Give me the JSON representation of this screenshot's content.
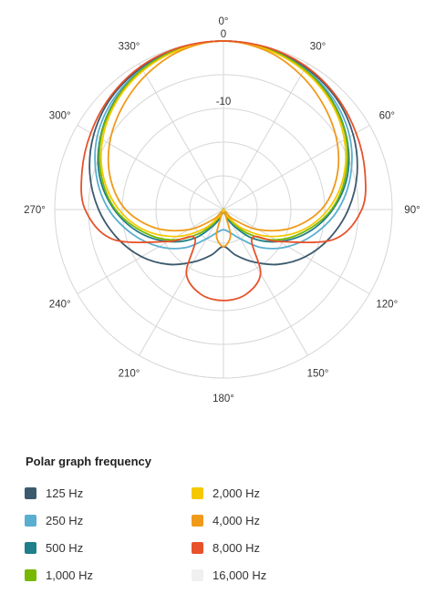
{
  "chart_data": {
    "type": "polar-line",
    "title": "",
    "radial_unit": "dB",
    "radial_range": [
      -25,
      0
    ],
    "radial_tick_labels": [
      "0",
      "-10"
    ],
    "angle_tick_labels": [
      "0°",
      "30°",
      "60°",
      "90°",
      "120°",
      "150°",
      "180°",
      "210°",
      "240°",
      "270°",
      "300°",
      "330°"
    ],
    "angles_deg": [
      0,
      15,
      30,
      45,
      60,
      75,
      90,
      105,
      120,
      135,
      150,
      165,
      180
    ],
    "symmetric": true,
    "series": [
      {
        "name": "125 Hz",
        "color": "#3d5a6c",
        "values": [
          0,
          -0.2,
          -0.7,
          -1.5,
          -2.8,
          -4.5,
          -6.5,
          -8.7,
          -11.0,
          -13.5,
          -16.0,
          -18.0,
          -19.5
        ]
      },
      {
        "name": "250 Hz",
        "color": "#5aaed0",
        "values": [
          0,
          -0.3,
          -0.9,
          -1.9,
          -3.4,
          -5.5,
          -8.0,
          -11.0,
          -14.0,
          -17.0,
          -20.0,
          -21.5,
          -22.0
        ]
      },
      {
        "name": "500 Hz",
        "color": "#1f7f8a",
        "values": [
          0,
          -0.3,
          -1.0,
          -2.2,
          -3.9,
          -6.0,
          -8.8,
          -12.0,
          -15.5,
          -19.0,
          -22.5,
          -24.5,
          -25.0
        ]
      },
      {
        "name": "1,000 Hz",
        "color": "#77b800",
        "values": [
          0,
          -0.3,
          -1.0,
          -2.3,
          -4.0,
          -6.3,
          -9.0,
          -12.5,
          -16.0,
          -20.0,
          -23.5,
          -25.0,
          -25.0
        ]
      },
      {
        "name": "2,000 Hz",
        "color": "#f5c800",
        "values": [
          0,
          -0.4,
          -1.2,
          -2.5,
          -4.3,
          -6.6,
          -9.5,
          -13.0,
          -17.0,
          -21.0,
          -24.0,
          -25.0,
          -25.0
        ]
      },
      {
        "name": "4,000 Hz",
        "color": "#f09a1a",
        "values": [
          0,
          -0.6,
          -2.0,
          -3.7,
          -5.5,
          -7.7,
          -10.5,
          -14.5,
          -19.0,
          -23.0,
          -24.5,
          -21.0,
          -19.5
        ]
      },
      {
        "name": "8,000 Hz",
        "color": "#e8522a",
        "values": [
          0,
          -0.1,
          -0.5,
          -1.3,
          -2.3,
          -3.3,
          -4.5,
          -8.0,
          -15.5,
          -19.0,
          -14.0,
          -12.0,
          -11.5
        ]
      },
      {
        "name": "16,000 Hz",
        "color": "#f0f0f0",
        "values": []
      }
    ]
  },
  "legend": {
    "title": "Polar graph frequency",
    "items": [
      {
        "label": "125 Hz",
        "color": "#3d5a6c"
      },
      {
        "label": "250 Hz",
        "color": "#5aaed0"
      },
      {
        "label": "500 Hz",
        "color": "#1f7f8a"
      },
      {
        "label": "1,000 Hz",
        "color": "#77b800"
      },
      {
        "label": "2,000 Hz",
        "color": "#f5c800"
      },
      {
        "label": "4,000 Hz",
        "color": "#f09a1a"
      },
      {
        "label": "8,000 Hz",
        "color": "#e8522a"
      },
      {
        "label": "16,000 Hz",
        "color": "#f0f0f0"
      }
    ]
  }
}
